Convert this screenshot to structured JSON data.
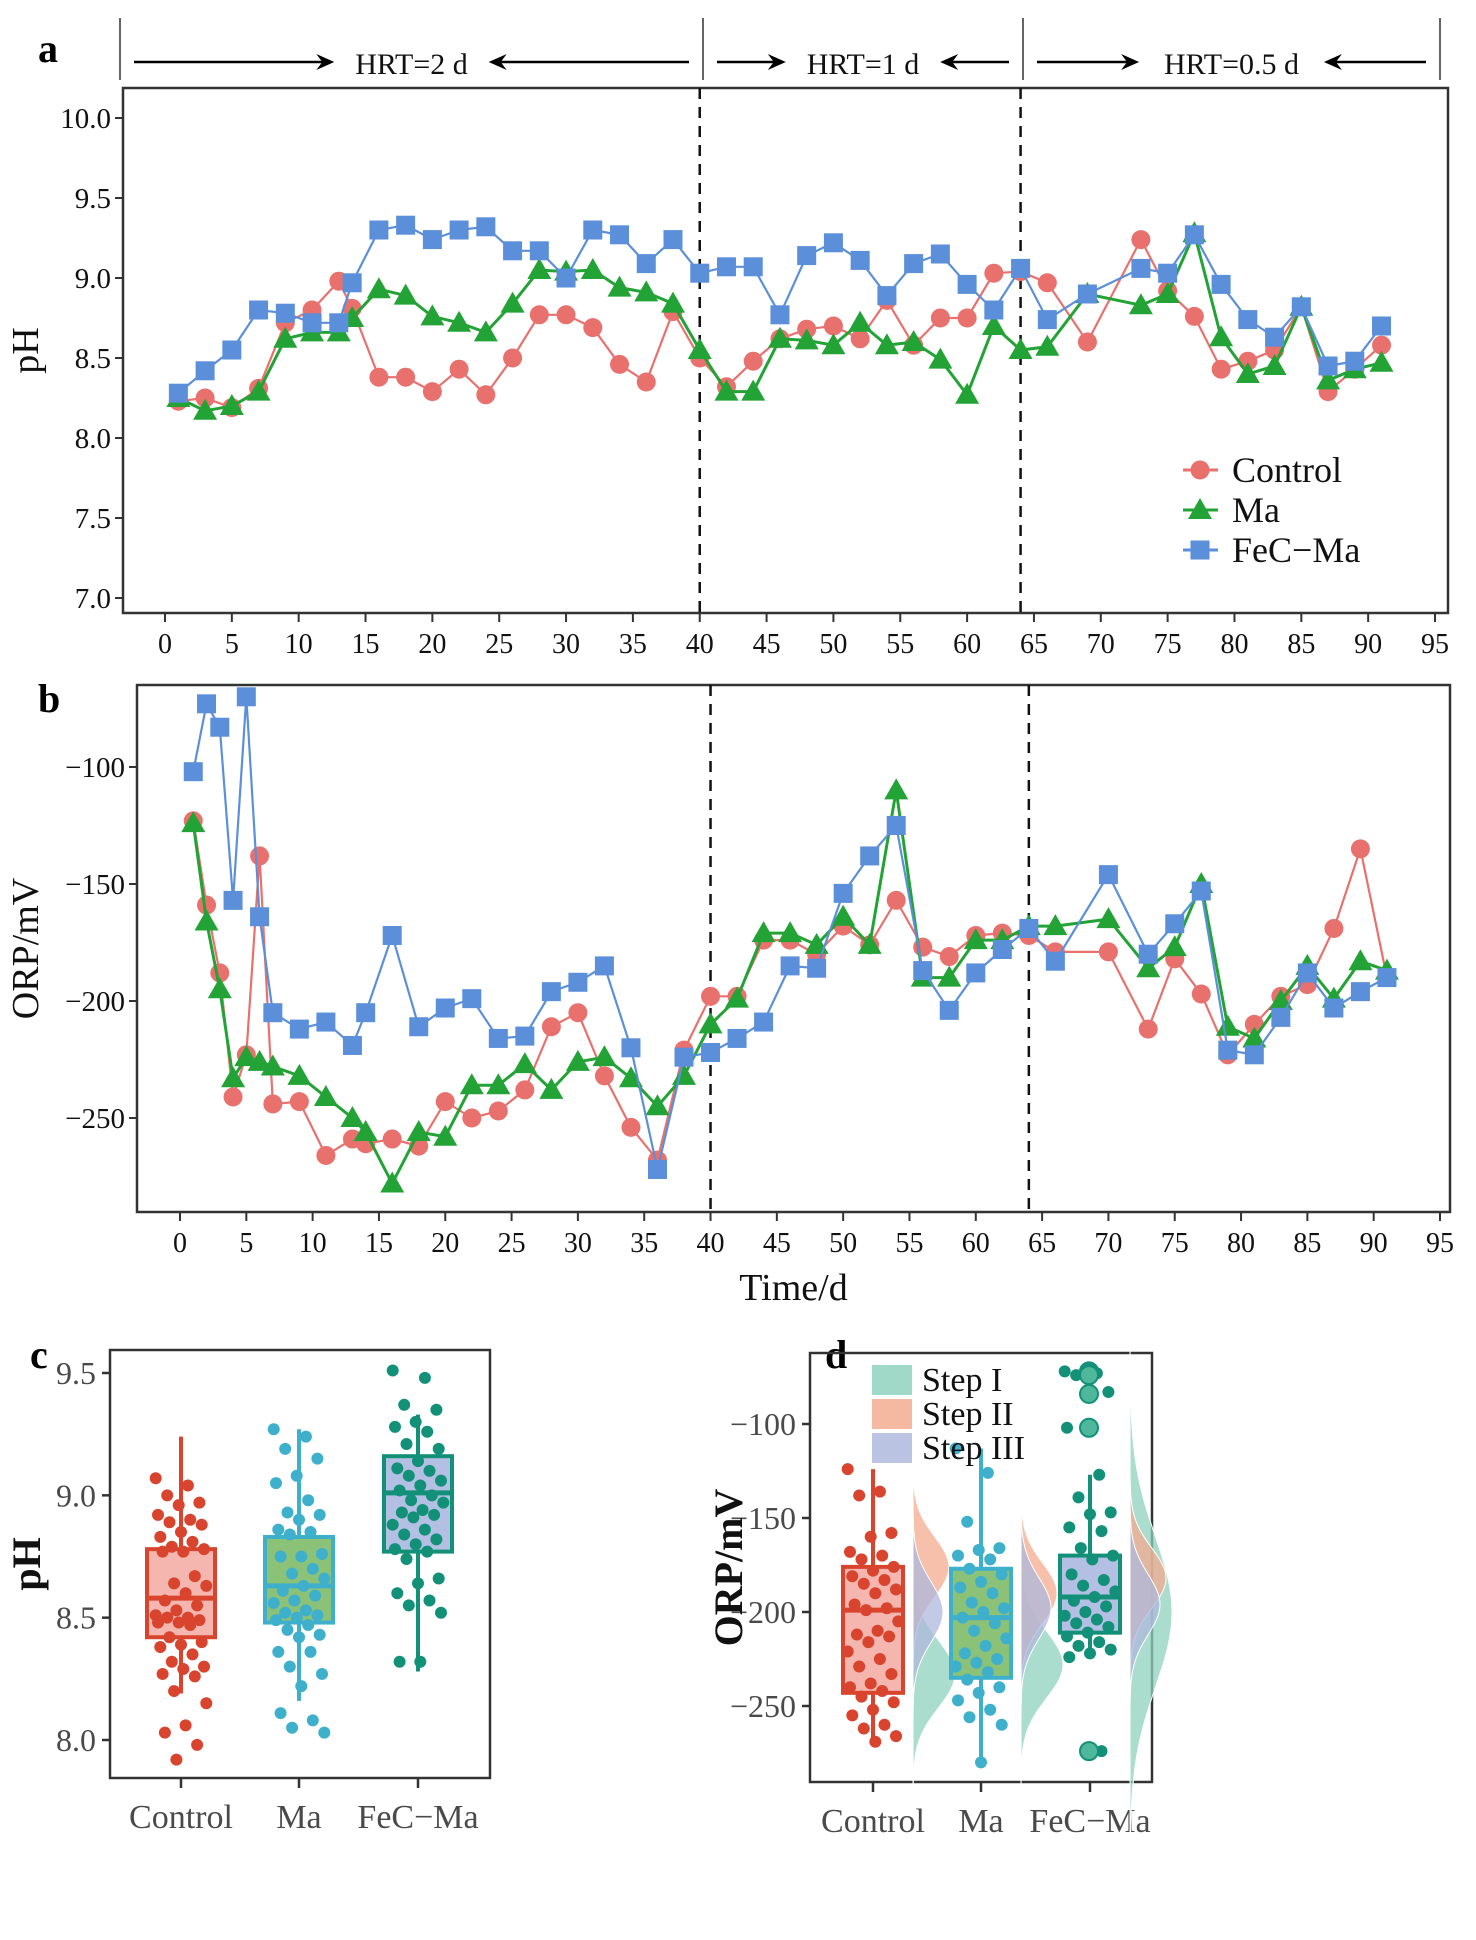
{
  "figure": {
    "panel_labels": [
      "a",
      "b",
      "c",
      "d"
    ]
  },
  "colors": {
    "control": "#e8716d",
    "ma": "#23a336",
    "fecma": "#5b8fd9",
    "box_control_stroke": "#d9442e",
    "box_control_fill": "#f4b6ae",
    "box_ma_stroke": "#3fb0cc",
    "box_ma_fill": "#8cc178",
    "box_fecma_stroke": "#139178",
    "box_fecma_fill": "#b3c0e3",
    "step1": "#8fd2bd",
    "step2": "#f3ab8f",
    "step3": "#aeb8dc"
  },
  "chart_data": [
    {
      "id": "a",
      "type": "line",
      "title": "",
      "xlabel": "",
      "ylabel": "pH",
      "xlim": [
        -3,
        96
      ],
      "ylim": [
        6.9,
        10.15
      ],
      "xticks": [
        0,
        5,
        10,
        15,
        20,
        25,
        30,
        35,
        40,
        45,
        50,
        55,
        60,
        65,
        70,
        75,
        80,
        85,
        90,
        95
      ],
      "yticks": [
        "7.0",
        "7.5",
        "8.0",
        "8.5",
        "9.0",
        "9.5",
        "10.0"
      ],
      "ytick_values": [
        7.0,
        7.5,
        8.0,
        8.5,
        9.0,
        9.5,
        10.0
      ],
      "grid": false,
      "legend": {
        "position": "bottom-right",
        "entries": [
          "Control",
          "Ma",
          "FeC−Ma"
        ]
      },
      "phase_boundaries": [
        40,
        64
      ],
      "phases": [
        {
          "label": "HRT=2 d",
          "from": -3,
          "to": 40
        },
        {
          "label": "HRT=1 d",
          "from": 40,
          "to": 64
        },
        {
          "label": "HRT=0.5 d",
          "from": 64,
          "to": 96
        }
      ],
      "series": [
        {
          "name": "Control",
          "marker": "circle",
          "x": [
            1,
            3,
            5,
            7,
            9,
            11,
            13,
            14,
            16,
            18,
            20,
            22,
            24,
            26,
            28,
            30,
            32,
            34,
            36,
            38,
            40,
            42,
            44,
            46,
            48,
            50,
            52,
            54,
            56,
            58,
            60,
            62,
            64,
            66,
            69,
            73,
            75,
            77,
            79,
            81,
            83,
            85,
            87,
            89,
            91
          ],
          "y": [
            8.23,
            8.25,
            8.19,
            8.31,
            8.72,
            8.8,
            8.98,
            8.81,
            8.38,
            8.38,
            8.29,
            8.43,
            8.27,
            8.5,
            8.77,
            8.77,
            8.69,
            8.46,
            8.35,
            8.79,
            8.5,
            8.32,
            8.48,
            8.62,
            8.68,
            8.7,
            8.62,
            8.86,
            8.58,
            8.75,
            8.75,
            9.03,
            9.04,
            8.97,
            8.6,
            9.24,
            8.92,
            8.76,
            8.43,
            8.48,
            8.55,
            8.82,
            8.29,
            8.43,
            8.58
          ]
        },
        {
          "name": "Ma",
          "marker": "triangle",
          "x": [
            1,
            3,
            5,
            7,
            9,
            11,
            13,
            14,
            16,
            18,
            20,
            22,
            24,
            26,
            28,
            30,
            32,
            34,
            36,
            38,
            40,
            42,
            44,
            46,
            48,
            50,
            52,
            54,
            56,
            58,
            60,
            62,
            64,
            66,
            69,
            73,
            75,
            77,
            79,
            81,
            83,
            85,
            87,
            89,
            91
          ],
          "y": [
            8.25,
            8.17,
            8.2,
            8.29,
            8.62,
            8.66,
            8.66,
            8.75,
            8.93,
            8.89,
            8.76,
            8.72,
            8.66,
            8.84,
            9.05,
            9.04,
            9.05,
            8.94,
            8.91,
            8.84,
            8.55,
            8.29,
            8.29,
            8.62,
            8.61,
            8.58,
            8.72,
            8.58,
            8.6,
            8.49,
            8.27,
            8.7,
            8.55,
            8.57,
            8.9,
            8.83,
            8.9,
            9.28,
            8.63,
            8.4,
            8.45,
            8.82,
            8.36,
            8.43,
            8.47
          ]
        },
        {
          "name": "FeC−Ma",
          "marker": "square",
          "x": [
            1,
            3,
            5,
            7,
            9,
            11,
            13,
            14,
            16,
            18,
            20,
            22,
            24,
            26,
            28,
            30,
            32,
            34,
            36,
            38,
            40,
            42,
            44,
            46,
            48,
            50,
            52,
            54,
            56,
            58,
            60,
            62,
            64,
            66,
            69,
            73,
            75,
            77,
            79,
            81,
            83,
            85,
            87,
            89,
            91
          ],
          "y": [
            8.28,
            8.42,
            8.55,
            8.8,
            8.78,
            8.72,
            8.72,
            8.97,
            9.3,
            9.33,
            9.24,
            9.3,
            9.32,
            9.17,
            9.17,
            9.0,
            9.3,
            9.27,
            9.09,
            9.24,
            9.03,
            9.07,
            9.07,
            8.77,
            9.14,
            9.22,
            9.11,
            8.89,
            9.09,
            9.15,
            8.96,
            8.8,
            9.06,
            8.74,
            8.9,
            9.06,
            9.03,
            9.27,
            8.96,
            8.74,
            8.63,
            8.82,
            8.45,
            8.48,
            8.7
          ]
        }
      ]
    },
    {
      "id": "b",
      "type": "line",
      "title": "",
      "xlabel": "Time/d",
      "ylabel": "ORP/mV",
      "xlim": [
        -3,
        96
      ],
      "ylim": [
        -288,
        -65
      ],
      "xticks": [
        0,
        5,
        10,
        15,
        20,
        25,
        30,
        35,
        40,
        45,
        50,
        55,
        60,
        65,
        70,
        75,
        80,
        85,
        90,
        95
      ],
      "yticks": [
        "−250",
        "−200",
        "−150",
        "−100"
      ],
      "ytick_values": [
        -250,
        -200,
        -150,
        -100
      ],
      "grid": false,
      "phase_boundaries": [
        40,
        64
      ],
      "series": [
        {
          "name": "Control",
          "marker": "circle",
          "x": [
            1,
            2,
            3,
            4,
            5,
            6,
            7,
            9,
            11,
            13,
            14,
            16,
            18,
            20,
            22,
            24,
            26,
            28,
            30,
            32,
            34,
            36,
            38,
            40,
            42,
            44,
            46,
            48,
            50,
            52,
            54,
            56,
            58,
            60,
            62,
            64,
            66,
            70,
            73,
            75,
            77,
            79,
            81,
            83,
            85,
            87,
            89,
            91
          ],
          "y": [
            -123,
            -159,
            -188,
            -241,
            -223,
            -138,
            -244,
            -243,
            -266,
            -259,
            -261,
            -259,
            -262,
            -243,
            -250,
            -247,
            -238,
            -211,
            -205,
            -232,
            -254,
            -268,
            -221,
            -198,
            -198,
            -174,
            -174,
            -180,
            -168,
            -176,
            -157,
            -177,
            -181,
            -172,
            -171,
            -172,
            -179,
            -179,
            -212,
            -182,
            -197,
            -223,
            -210,
            -198,
            -193,
            -169,
            -135,
            -190
          ]
        },
        {
          "name": "Ma",
          "marker": "triangle",
          "x": [
            1,
            2,
            3,
            4,
            5,
            6,
            7,
            9,
            11,
            13,
            14,
            16,
            18,
            20,
            22,
            24,
            26,
            28,
            30,
            32,
            34,
            36,
            38,
            40,
            42,
            44,
            46,
            48,
            50,
            52,
            54,
            56,
            58,
            60,
            62,
            64,
            66,
            70,
            73,
            75,
            77,
            79,
            81,
            83,
            85,
            87,
            89,
            91
          ],
          "y": [
            -124,
            -166,
            -195,
            -233,
            -224,
            -226,
            -228,
            -232,
            -241,
            -250,
            -256,
            -278,
            -256,
            -258,
            -236,
            -236,
            -227,
            -238,
            -226,
            -224,
            -233,
            -245,
            -232,
            -210,
            -199,
            -171,
            -171,
            -176,
            -164,
            -176,
            -110,
            -190,
            -190,
            -174,
            -174,
            -168,
            -168,
            -165,
            -186,
            -177,
            -150,
            -211,
            -216,
            -200,
            -185,
            -199,
            -183,
            -187
          ]
        },
        {
          "name": "FeC−Ma",
          "marker": "square",
          "x": [
            1,
            2,
            3,
            4,
            5,
            6,
            7,
            9,
            11,
            13,
            14,
            16,
            18,
            20,
            22,
            24,
            26,
            28,
            30,
            32,
            34,
            36,
            38,
            40,
            42,
            44,
            46,
            48,
            50,
            52,
            54,
            56,
            58,
            60,
            62,
            64,
            66,
            70,
            73,
            75,
            77,
            79,
            81,
            83,
            85,
            87,
            89,
            91
          ],
          "y": [
            -102,
            -73,
            -83,
            -157,
            -70,
            -164,
            -205,
            -212,
            -209,
            -219,
            -205,
            -172,
            -211,
            -203,
            -199,
            -216,
            -215,
            -196,
            -192,
            -185,
            -220,
            -272,
            -224,
            -222,
            -216,
            -209,
            -185,
            -186,
            -154,
            -138,
            -125,
            -187,
            -204,
            -188,
            -178,
            -169,
            -183,
            -146,
            -180,
            -167,
            -153,
            -221,
            -223,
            -207,
            -188,
            -203,
            -196,
            -190
          ]
        }
      ]
    },
    {
      "id": "c",
      "type": "box",
      "title": "",
      "xlabel": "",
      "ylabel": "pH",
      "ylim": [
        7.87,
        9.6
      ],
      "yticks": [
        "8.0",
        "8.5",
        "9.0",
        "9.5"
      ],
      "ytick_values": [
        8.0,
        8.5,
        9.0,
        9.5
      ],
      "categories": [
        "Control",
        "Ma",
        "FeC−Ma"
      ],
      "boxes": [
        {
          "name": "Control",
          "whisker_low": 8.19,
          "q1": 8.42,
          "median": 8.58,
          "q3": 8.78,
          "whisker_high": 9.24
        },
        {
          "name": "Ma",
          "whisker_low": 8.16,
          "q1": 8.48,
          "median": 8.63,
          "q3": 8.83,
          "whisker_high": 9.27
        },
        {
          "name": "FeC−Ma",
          "whisker_low": 8.28,
          "q1": 8.77,
          "median": 9.01,
          "q3": 9.16,
          "whisker_high": 9.33
        }
      ],
      "points": [
        [
          9.07,
          9.04,
          9.0,
          8.97,
          8.96,
          8.92,
          8.9,
          8.89,
          8.88,
          8.85,
          8.83,
          8.81,
          8.79,
          8.78,
          8.77,
          8.77,
          8.67,
          8.64,
          8.63,
          8.6,
          8.57,
          8.55,
          8.53,
          8.51,
          8.5,
          8.5,
          8.49,
          8.48,
          8.48,
          8.47,
          8.42,
          8.4,
          8.39,
          8.38,
          8.35,
          8.32,
          8.3,
          8.29,
          8.27,
          8.26,
          8.2,
          8.15,
          8.06,
          8.03,
          7.98,
          7.92
        ],
        [
          9.27,
          9.24,
          9.19,
          9.15,
          9.08,
          9.05,
          8.98,
          8.93,
          8.92,
          8.9,
          8.86,
          8.85,
          8.84,
          8.76,
          8.75,
          8.75,
          8.7,
          8.68,
          8.66,
          8.63,
          8.61,
          8.59,
          8.57,
          8.56,
          8.53,
          8.52,
          8.51,
          8.5,
          8.49,
          8.47,
          8.45,
          8.43,
          8.42,
          8.36,
          8.36,
          8.3,
          8.27,
          8.22,
          8.11,
          8.08,
          8.05,
          8.03
        ],
        [
          9.51,
          9.48,
          9.37,
          9.35,
          9.3,
          9.28,
          9.26,
          9.21,
          9.19,
          9.14,
          9.11,
          9.1,
          9.08,
          9.06,
          9.04,
          9.02,
          9.0,
          8.98,
          8.97,
          8.94,
          8.93,
          8.92,
          8.91,
          8.88,
          8.86,
          8.84,
          8.82,
          8.8,
          8.78,
          8.77,
          8.74,
          8.66,
          8.64,
          8.6,
          8.57,
          8.55,
          8.52,
          8.32,
          8.32
        ]
      ]
    },
    {
      "id": "d",
      "type": "box",
      "title": "",
      "xlabel": "",
      "ylabel": "ORP/mV",
      "ylim": [
        -290,
        -62
      ],
      "yticks": [
        "−250",
        "−200",
        "−150",
        "−100"
      ],
      "ytick_values": [
        -250,
        -200,
        -150,
        -100
      ],
      "categories": [
        "Control",
        "Ma",
        "FeC−Ma"
      ],
      "legend": {
        "position": "top-left",
        "entries": [
          "Step I",
          "Step II",
          "Step III"
        ]
      },
      "boxes": [
        {
          "name": "Control",
          "whisker_low": -269,
          "q1": -243,
          "median": -199,
          "q3": -176,
          "whisker_high": -124
        },
        {
          "name": "Ma",
          "whisker_low": -280,
          "q1": -235,
          "median": -203,
          "q3": -177,
          "whisker_high": -113
        },
        {
          "name": "FeC−Ma",
          "whisker_low": -224,
          "q1": -211,
          "median": -192,
          "q3": -170,
          "whisker_high": -127
        }
      ],
      "points": [
        [
          -124,
          -136,
          -138,
          -158,
          -160,
          -168,
          -170,
          -172,
          -176,
          -178,
          -181,
          -183,
          -185,
          -188,
          -190,
          -196,
          -198,
          -199,
          -205,
          -210,
          -212,
          -213,
          -216,
          -221,
          -225,
          -229,
          -233,
          -238,
          -240,
          -242,
          -245,
          -248,
          -252,
          -255,
          -260,
          -262,
          -266,
          -269
        ],
        [
          -113,
          -126,
          -152,
          -166,
          -167,
          -170,
          -172,
          -177,
          -180,
          -184,
          -187,
          -190,
          -195,
          -198,
          -200,
          -203,
          -206,
          -210,
          -214,
          -218,
          -222,
          -225,
          -227,
          -229,
          -232,
          -236,
          -240,
          -243,
          -247,
          -252,
          -256,
          -260,
          -280
        ],
        [
          -72,
          -73,
          -74,
          -83,
          -84,
          -102,
          -127,
          -139,
          -147,
          -148,
          -155,
          -157,
          -166,
          -170,
          -172,
          -180,
          -183,
          -186,
          -189,
          -192,
          -194,
          -197,
          -200,
          -202,
          -204,
          -206,
          -208,
          -211,
          -213,
          -216,
          -218,
          -220,
          -222,
          -224,
          -274
        ]
      ],
      "outliers_fecma": [
        -72,
        -73,
        -74,
        -84,
        -102,
        -274
      ],
      "densities": {
        "note": "half-violin densities by step, peak location in mV",
        "Control": {
          "Step I": -233,
          "Step II": -176,
          "Step III": -200
        },
        "Ma": {
          "Step I": -228,
          "Step II": -190,
          "Step III": -198
        },
        "FeC−Ma": {
          "Step I": -200,
          "Step II": -182,
          "Step III": -196
        }
      }
    }
  ]
}
